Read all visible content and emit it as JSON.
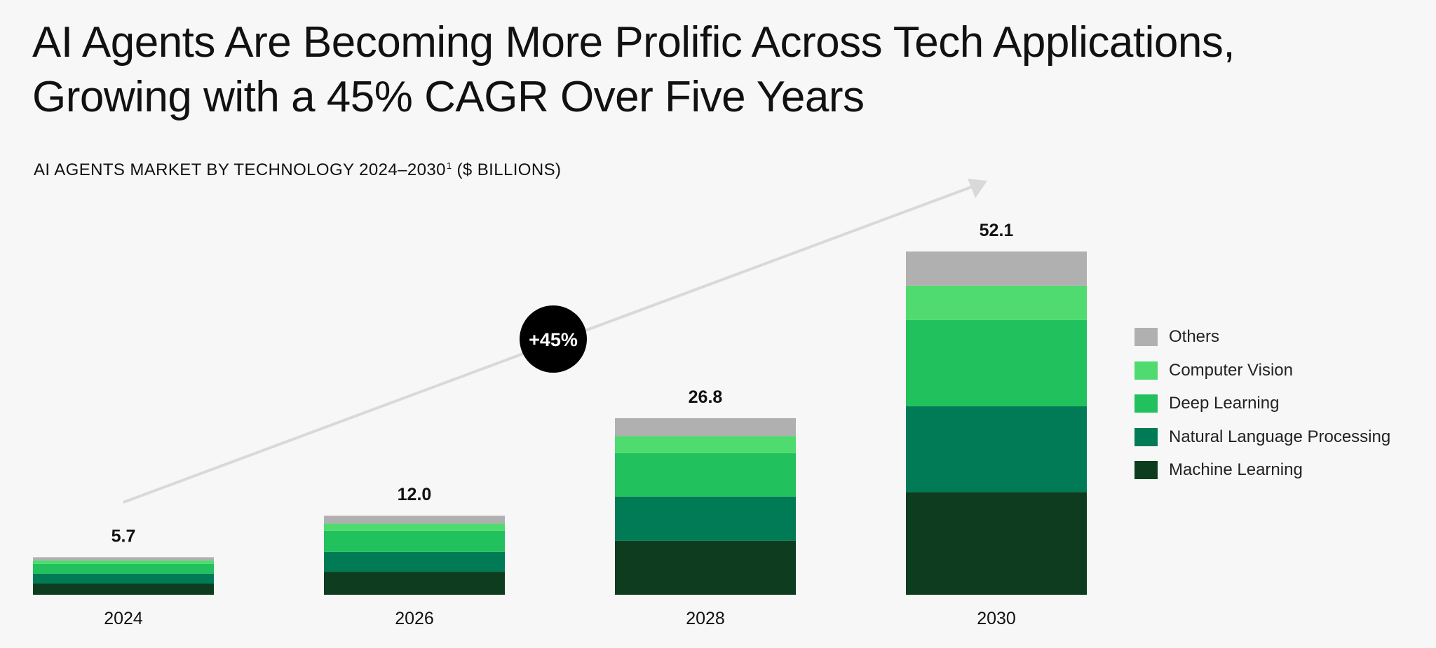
{
  "title": {
    "line1": "AI Agents Are Becoming More Prolific Across Tech Applications,",
    "line2": "Growing with a 45% CAGR Over Five Years"
  },
  "subtitle": {
    "text": "AI AGENTS MARKET BY TECHNOLOGY 2024–2030",
    "footnote": "1",
    "unit": " ($ BILLIONS)"
  },
  "growth_badge": {
    "label": "+45%"
  },
  "colors": {
    "Others": "#b0b0b0",
    "Computer Vision": "#4fdb6f",
    "Deep Learning": "#21c15d",
    "Natural Language Processing": "#007b55",
    "Machine Learning": "#0d3d1e",
    "badge": "#000000",
    "arrow": "#d9d9d9"
  },
  "legend": [
    {
      "label": "Others"
    },
    {
      "label": "Computer Vision"
    },
    {
      "label": "Deep Learning"
    },
    {
      "label": "Natural Language Processing"
    },
    {
      "label": "Machine Learning"
    }
  ],
  "chart_data": {
    "type": "bar",
    "stacked": true,
    "title": "AI AGENTS MARKET BY TECHNOLOGY 2024–2030 ($ BILLIONS)",
    "categories": [
      "2024",
      "2026",
      "2028",
      "2030"
    ],
    "totals": [
      5.7,
      12.0,
      26.8,
      52.1
    ],
    "total_labels": [
      "5.7",
      "12.0",
      "26.8",
      "52.1"
    ],
    "series": [
      {
        "name": "Machine Learning",
        "values": [
          1.7,
          3.5,
          8.2,
          15.6
        ]
      },
      {
        "name": "Natural Language Processing",
        "values": [
          1.5,
          3.0,
          6.7,
          13.0
        ]
      },
      {
        "name": "Deep Learning",
        "values": [
          1.5,
          3.2,
          6.6,
          13.1
        ]
      },
      {
        "name": "Computer Vision",
        "values": [
          0.5,
          1.1,
          2.6,
          5.2
        ]
      },
      {
        "name": "Others",
        "values": [
          0.5,
          1.2,
          2.7,
          5.2
        ]
      }
    ],
    "ylim": [
      0,
      52.1
    ],
    "grid": false,
    "legend_position": "right",
    "annotation": "+45%"
  }
}
